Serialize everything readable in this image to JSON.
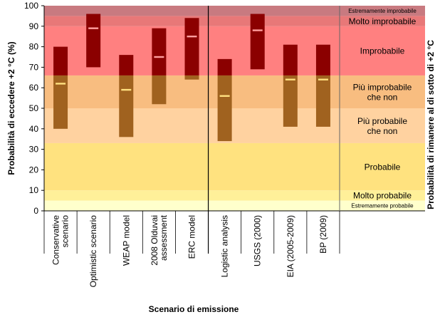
{
  "chart_data": {
    "type": "bar",
    "subtype": "floating-range-with-marker",
    "categories": [
      [
        "Conservative",
        "scenario"
      ],
      [
        "Optimistic scenario"
      ],
      [
        "WEAP model"
      ],
      [
        "2008 Olduvai",
        "assessment"
      ],
      [
        "ERC model"
      ],
      [
        "Logistic analysis"
      ],
      [
        "USGS (2000)"
      ],
      [
        "EIA (2005-2009)"
      ],
      [
        "BP (2009)"
      ]
    ],
    "ranges": [
      {
        "low": 40,
        "high": 80,
        "marker": 62
      },
      {
        "low": 70,
        "high": 96,
        "marker": 89
      },
      {
        "low": 36,
        "high": 76,
        "marker": 59
      },
      {
        "low": 52,
        "high": 89,
        "marker": 75
      },
      {
        "low": 64,
        "high": 94,
        "marker": 85
      },
      {
        "low": 34,
        "high": 74,
        "marker": 56
      },
      {
        "low": 69,
        "high": 96,
        "marker": 88
      },
      {
        "low": 41,
        "high": 81,
        "marker": 64
      },
      {
        "low": 41,
        "high": 81,
        "marker": 64
      }
    ],
    "divider_after_index": 4,
    "ylim": [
      0,
      100
    ],
    "yticks": [
      0,
      10,
      20,
      30,
      40,
      50,
      60,
      70,
      80,
      90,
      100
    ],
    "ylabel": "Probabilità di eccedere +2 °C (%)",
    "xlabel": "Scenario di emissione",
    "right_axis_label": "Probabilità di rimanere al di sotto di +2 °C",
    "bands": [
      {
        "from": 0,
        "to": 5,
        "label": [
          "Estremamente probabile"
        ],
        "size": "small",
        "color": "#ffffcc"
      },
      {
        "from": 5,
        "to": 10,
        "label": [
          "Molto probabile"
        ],
        "size": "normal",
        "color": "#fff099"
      },
      {
        "from": 10,
        "to": 33,
        "label": [
          "Probabile"
        ],
        "size": "normal",
        "color": "#ffe27f"
      },
      {
        "from": 33,
        "to": 50,
        "label": [
          "Più probabile",
          "che non"
        ],
        "size": "normal",
        "color": "#ffd2a0"
      },
      {
        "from": 50,
        "to": 66,
        "label": [
          "Più improbabile",
          "che non"
        ],
        "size": "normal",
        "color": "#f8bd80"
      },
      {
        "from": 66,
        "to": 90,
        "label": [
          "Improbabile"
        ],
        "size": "normal",
        "color": "#ff8080"
      },
      {
        "from": 90,
        "to": 95,
        "label": [
          "Molto improbabile"
        ],
        "size": "normal",
        "color": "#e87878"
      },
      {
        "from": 95,
        "to": 100,
        "label": [
          "Estremamente improbabile"
        ],
        "size": "small",
        "color": "#c87a80"
      }
    ],
    "colors": {
      "range_upper": "#8b0000",
      "range_lower": "#a0621f",
      "marker_upper": "#ff9e9e",
      "marker_lower": "#ffe080",
      "axis": "#000000"
    }
  }
}
